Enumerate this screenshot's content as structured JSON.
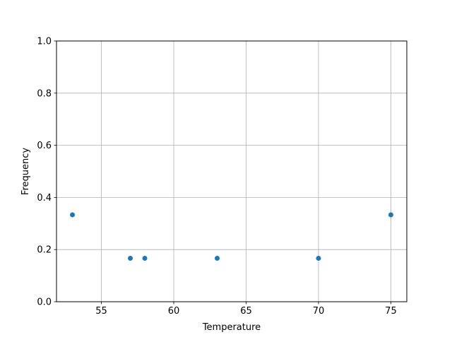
{
  "chart_data": {
    "type": "scatter",
    "title": "",
    "xlabel": "Temperature",
    "ylabel": "Frequency",
    "x": [
      53,
      57,
      58,
      63,
      70,
      75
    ],
    "y": [
      0.3333,
      0.1667,
      0.1667,
      0.1667,
      0.1667,
      0.3333
    ],
    "xlim": [
      51.9,
      76.1
    ],
    "ylim": [
      0.0,
      1.0
    ],
    "xticks": [
      55,
      60,
      65,
      70,
      75
    ],
    "xtick_labels": [
      "55",
      "60",
      "65",
      "70",
      "75"
    ],
    "yticks": [
      0.0,
      0.2,
      0.4,
      0.6,
      0.8,
      1.0
    ],
    "ytick_labels": [
      "0.0",
      "0.2",
      "0.4",
      "0.6",
      "0.8",
      "1.0"
    ],
    "grid": true,
    "marker_color": "#1f77b4",
    "grid_color": "#b0b0b0"
  }
}
